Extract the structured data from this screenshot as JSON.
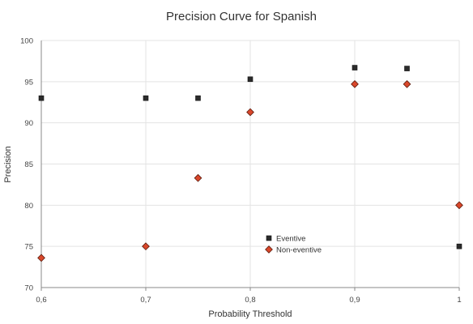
{
  "chart_data": {
    "type": "scatter",
    "title": "Precision Curve for Spanish",
    "xlabel": "Probability Threshold",
    "ylabel": "Precision",
    "xlim": [
      0.6,
      1.0
    ],
    "ylim": [
      70,
      100
    ],
    "x_ticks": [
      0.6,
      0.7,
      0.8,
      0.9,
      1.0
    ],
    "x_tick_labels": [
      "0,6",
      "0,7",
      "0,8",
      "0,9",
      "1"
    ],
    "y_ticks": [
      70,
      75,
      80,
      85,
      90,
      95,
      100
    ],
    "y_tick_labels": [
      "70",
      "75",
      "80",
      "85",
      "90",
      "95",
      "100"
    ],
    "grid": {
      "x": true,
      "y": true
    },
    "legend_position": "center",
    "series": [
      {
        "name": "Eventive",
        "marker": "square",
        "color": "#2b2b2b",
        "x": [
          0.6,
          0.7,
          0.75,
          0.8,
          0.9,
          0.95,
          1.0
        ],
        "y": [
          93,
          93,
          93,
          95.3,
          96.7,
          96.6,
          75
        ]
      },
      {
        "name": "Non-eventive",
        "marker": "diamond",
        "color": "#d9472b",
        "x": [
          0.6,
          0.7,
          0.75,
          0.8,
          0.9,
          0.95,
          1.0
        ],
        "y": [
          73.6,
          75,
          83.3,
          91.3,
          94.7,
          94.7,
          80
        ]
      }
    ]
  }
}
